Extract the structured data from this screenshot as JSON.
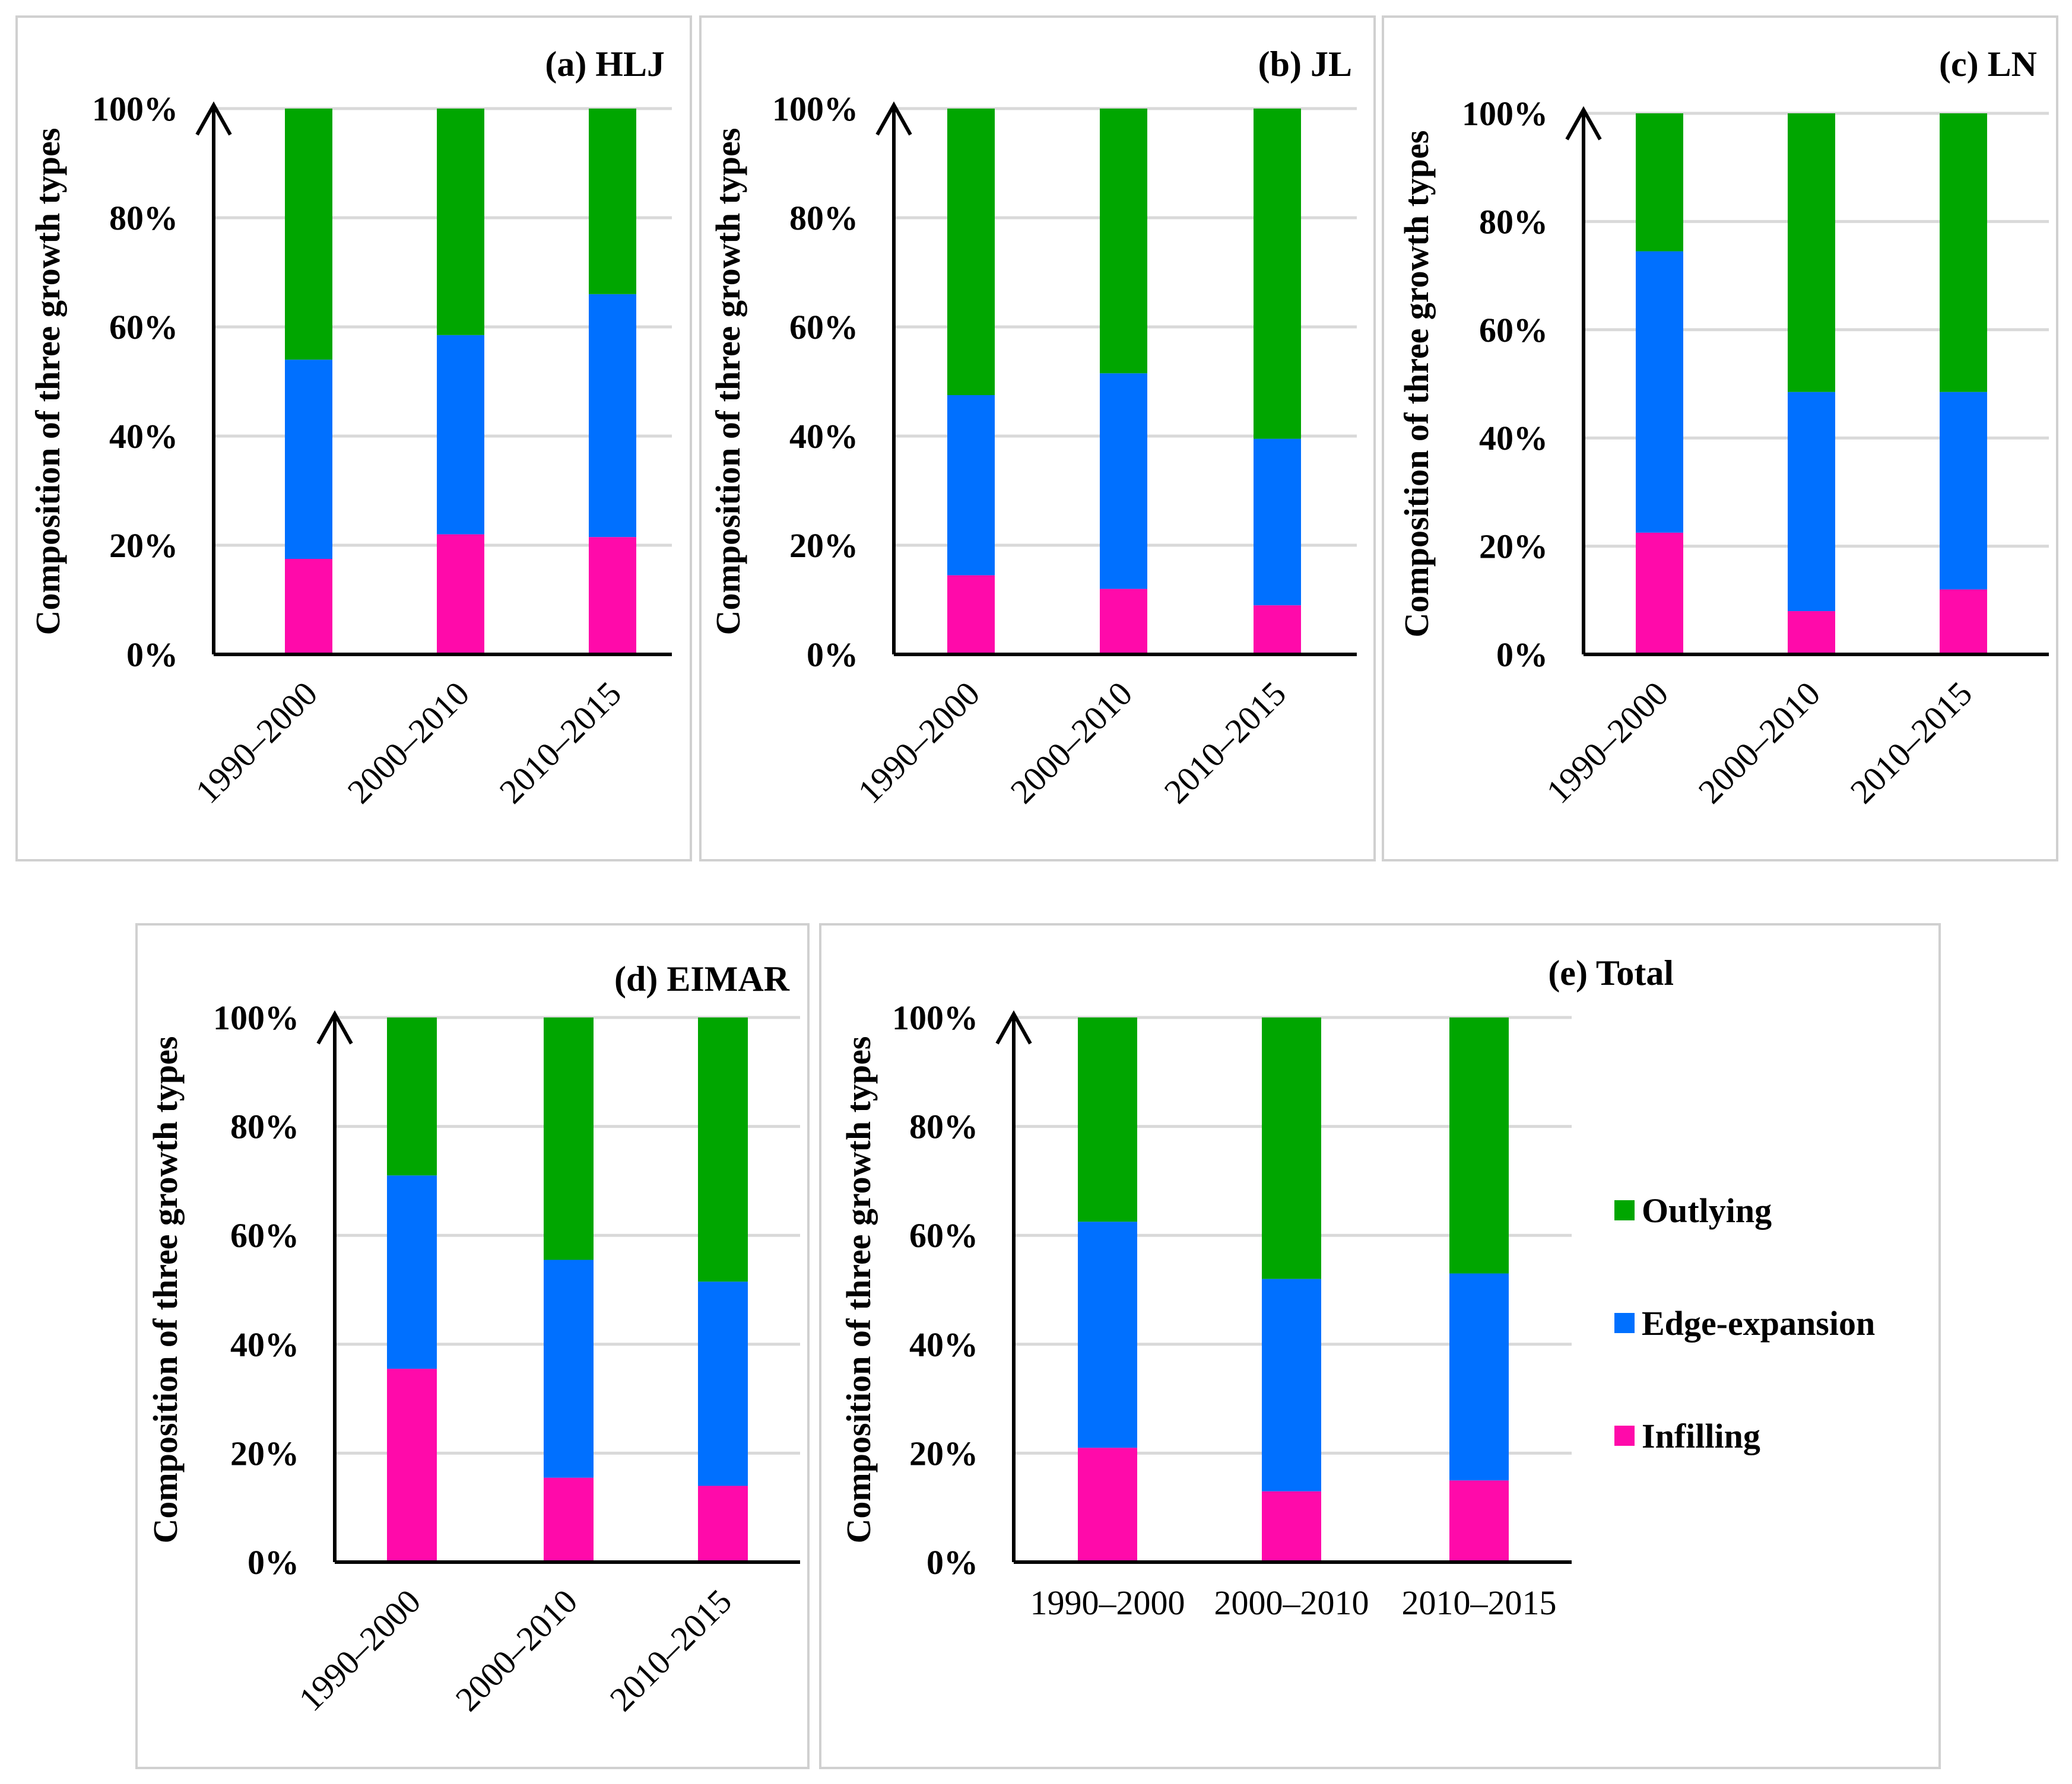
{
  "colors": {
    "outlying": "#00a600",
    "edge_expansion": "#0070ff",
    "infilling": "#ff0aaa"
  },
  "legend": [
    {
      "key": "outlying",
      "label": "Outlying"
    },
    {
      "key": "edge_expansion",
      "label": "Edge-expansion"
    },
    {
      "key": "infilling",
      "label": "Infilling"
    }
  ],
  "chart_data": [
    {
      "type": "bar",
      "stacked": true,
      "title": "(a) HLJ",
      "ylabel": "Composition of three growth types",
      "yticks": [
        "0%",
        "20%",
        "40%",
        "60%",
        "80%",
        "100%"
      ],
      "ylim": [
        0,
        100
      ],
      "categories": [
        "1990-2000",
        "2000-2010",
        "2010-2015"
      ],
      "series": [
        {
          "name": "Infilling",
          "key": "infilling",
          "values": [
            17.5,
            22.0,
            21.5
          ]
        },
        {
          "name": "Edge-expansion",
          "key": "edge_expansion",
          "values": [
            36.5,
            36.5,
            44.5
          ]
        },
        {
          "name": "Outlying",
          "key": "outlying",
          "values": [
            46.0,
            41.5,
            34.0
          ]
        }
      ]
    },
    {
      "type": "bar",
      "stacked": true,
      "title": "(b) JL",
      "ylabel": "Composition of three growth types",
      "yticks": [
        "0%",
        "20%",
        "40%",
        "60%",
        "80%",
        "100%"
      ],
      "ylim": [
        0,
        100
      ],
      "categories": [
        "1990-2000",
        "2000-2010",
        "2010-2015"
      ],
      "series": [
        {
          "name": "Infilling",
          "key": "infilling",
          "values": [
            14.5,
            12.0,
            9.0
          ]
        },
        {
          "name": "Edge-expansion",
          "key": "edge_expansion",
          "values": [
            33.0,
            39.5,
            30.5
          ]
        },
        {
          "name": "Outlying",
          "key": "outlying",
          "values": [
            52.5,
            48.5,
            60.5
          ]
        }
      ]
    },
    {
      "type": "bar",
      "stacked": true,
      "title": "(c) LN",
      "ylabel": "Composition of three growth types",
      "yticks": [
        "0%",
        "20%",
        "40%",
        "60%",
        "80%",
        "100%"
      ],
      "ylim": [
        0,
        100
      ],
      "categories": [
        "1990-2000",
        "2000-2010",
        "2010-2015"
      ],
      "series": [
        {
          "name": "Infilling",
          "key": "infilling",
          "values": [
            22.5,
            8.0,
            12.0
          ]
        },
        {
          "name": "Edge-expansion",
          "key": "edge_expansion",
          "values": [
            52.0,
            40.5,
            36.5
          ]
        },
        {
          "name": "Outlying",
          "key": "outlying",
          "values": [
            25.5,
            51.5,
            51.5
          ]
        }
      ]
    },
    {
      "type": "bar",
      "stacked": true,
      "title": "(d) EIMAR",
      "ylabel": "Composition of three growth types",
      "yticks": [
        "0%",
        "20%",
        "40%",
        "60%",
        "80%",
        "100%"
      ],
      "ylim": [
        0,
        100
      ],
      "categories": [
        "1990-2000",
        "2000-2010",
        "2010-2015"
      ],
      "series": [
        {
          "name": "Infilling",
          "key": "infilling",
          "values": [
            35.5,
            15.5,
            14.0
          ]
        },
        {
          "name": "Edge-expansion",
          "key": "edge_expansion",
          "values": [
            35.5,
            40.0,
            37.5
          ]
        },
        {
          "name": "Outlying",
          "key": "outlying",
          "values": [
            29.0,
            44.5,
            48.5
          ]
        }
      ]
    },
    {
      "type": "bar",
      "stacked": true,
      "title": "(e) Total",
      "ylabel": "Composition of three growth types",
      "yticks": [
        "0%",
        "20%",
        "40%",
        "60%",
        "80%",
        "100%"
      ],
      "ylim": [
        0,
        100
      ],
      "categories": [
        "1990-2000",
        "2000-2010",
        "2010-2015"
      ],
      "series": [
        {
          "name": "Infilling",
          "key": "infilling",
          "values": [
            21.0,
            13.0,
            15.0
          ]
        },
        {
          "name": "Edge-expansion",
          "key": "edge_expansion",
          "values": [
            41.5,
            39.0,
            38.0
          ]
        },
        {
          "name": "Outlying",
          "key": "outlying",
          "values": [
            37.5,
            48.0,
            47.0
          ]
        }
      ]
    }
  ]
}
